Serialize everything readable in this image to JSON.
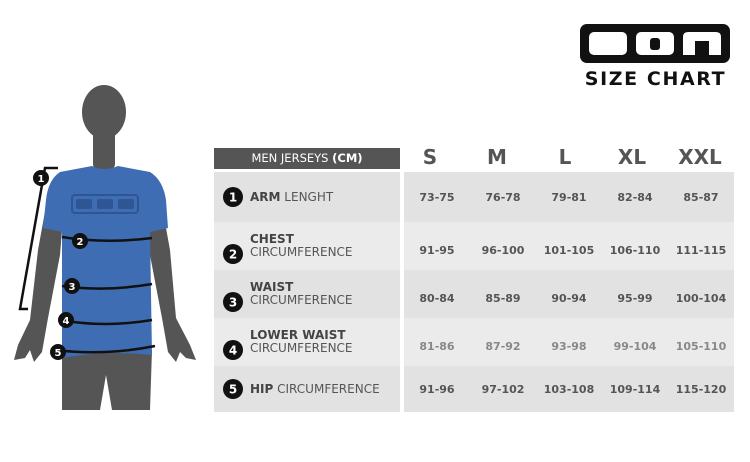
{
  "logo": {
    "text": "ION"
  },
  "title": "SIZE CHART",
  "table": {
    "header_label": "MEN JERSEYS",
    "header_unit": "(CM)",
    "sizes": [
      "S",
      "M",
      "L",
      "XL",
      "XXL"
    ],
    "rows": [
      {
        "num": "1",
        "bold": "ARM",
        "rest": "LENGHT",
        "values": [
          "73-75",
          "76-78",
          "79-81",
          "82-84",
          "85-87"
        ]
      },
      {
        "num": "2",
        "bold": "CHEST",
        "rest": "CIRCUMFERENCE",
        "values": [
          "91-95",
          "96-100",
          "101-105",
          "106-110",
          "111-115"
        ]
      },
      {
        "num": "3",
        "bold": "WAIST",
        "rest": "CIRCUMFERENCE",
        "values": [
          "80-84",
          "85-89",
          "90-94",
          "95-99",
          "100-104"
        ]
      },
      {
        "num": "4",
        "bold": "LOWER WAIST",
        "rest": "CIRCUMFERENCE",
        "values": [
          "81-86",
          "87-92",
          "93-98",
          "99-104",
          "105-110"
        ]
      },
      {
        "num": "5",
        "bold": "HIP",
        "rest": "CIRCUMFERENCE",
        "values": [
          "91-96",
          "97-102",
          "103-108",
          "109-114",
          "115-120"
        ]
      }
    ]
  },
  "figure": {
    "markers": [
      "1",
      "2",
      "3",
      "4",
      "5"
    ],
    "shirt_color": "#3f6db3",
    "body_color": "#555555"
  }
}
